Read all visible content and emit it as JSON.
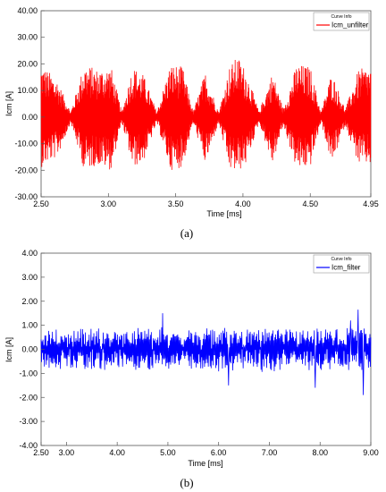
{
  "chart_data": [
    {
      "type": "line",
      "caption": "(a)",
      "xlabel": "Time [ms]",
      "ylabel": "Icm [A]",
      "xlim": [
        2.5,
        4.95
      ],
      "ylim": [
        -30,
        40
      ],
      "x_ticks": [
        "2.50",
        "3.00",
        "3.50",
        "4.00",
        "4.50",
        "4.95"
      ],
      "y_ticks": [
        "40.00",
        "30.00",
        "20.00",
        "10.00",
        "0.00",
        "-10.00",
        "-20.00",
        "-30.00"
      ],
      "legend_title": "Curve Info",
      "legend_position": "top-right",
      "grid": false,
      "series": [
        {
          "name": "Icm_unfilter",
          "color": "#ff0000",
          "envelope_x": [
            2.5,
            2.62,
            2.72,
            2.82,
            2.92,
            3.02,
            3.1,
            3.18,
            3.26,
            3.36,
            3.46,
            3.55,
            3.63,
            3.72,
            3.82,
            3.9,
            3.96,
            4.02,
            4.12,
            4.22,
            4.3,
            4.4,
            4.5,
            4.58,
            4.66,
            4.76,
            4.86,
            4.95
          ],
          "envelope_max": [
            20,
            14,
            2,
            20,
            18,
            19,
            2,
            19,
            16,
            2,
            20,
            19,
            2,
            17,
            2,
            19,
            23,
            18,
            2,
            17,
            3,
            20,
            19,
            2,
            17,
            3,
            18,
            19
          ],
          "envelope_min": [
            -19,
            -15,
            -2,
            -20,
            -18,
            -20,
            -2,
            -19,
            -17,
            -2,
            -20,
            -19,
            -2,
            -18,
            -2,
            -20,
            -21,
            -18,
            -2,
            -18,
            -3,
            -20,
            -19,
            -2,
            -18,
            -3,
            -18,
            -18
          ]
        }
      ]
    },
    {
      "type": "line",
      "caption": "(b)",
      "xlabel": "Time [ms]",
      "ylabel": "Icm [A]",
      "xlim": [
        2.5,
        9.0
      ],
      "ylim": [
        -4,
        4
      ],
      "x_ticks": [
        "2.50",
        "3.00",
        "4.00",
        "5.00",
        "6.00",
        "7.00",
        "8.00",
        "9.00"
      ],
      "y_ticks": [
        "4.00",
        "3.00",
        "2.00",
        "1.00",
        "0.00",
        "-1.00",
        "-2.00",
        "-3.00",
        "-4.00"
      ],
      "legend_title": "Curve Info",
      "legend_position": "top-right",
      "grid": false,
      "series": [
        {
          "name": "Icm_filter",
          "color": "#0000ff",
          "amplitude_typical": 0.8,
          "peaks_max": [
            [
              4.9,
              1.5
            ],
            [
              8.75,
              1.65
            ],
            [
              8.6,
              1.2
            ]
          ],
          "peaks_min": [
            [
              8.85,
              -1.9
            ],
            [
              6.2,
              -1.5
            ],
            [
              7.9,
              -1.6
            ]
          ]
        }
      ]
    }
  ]
}
